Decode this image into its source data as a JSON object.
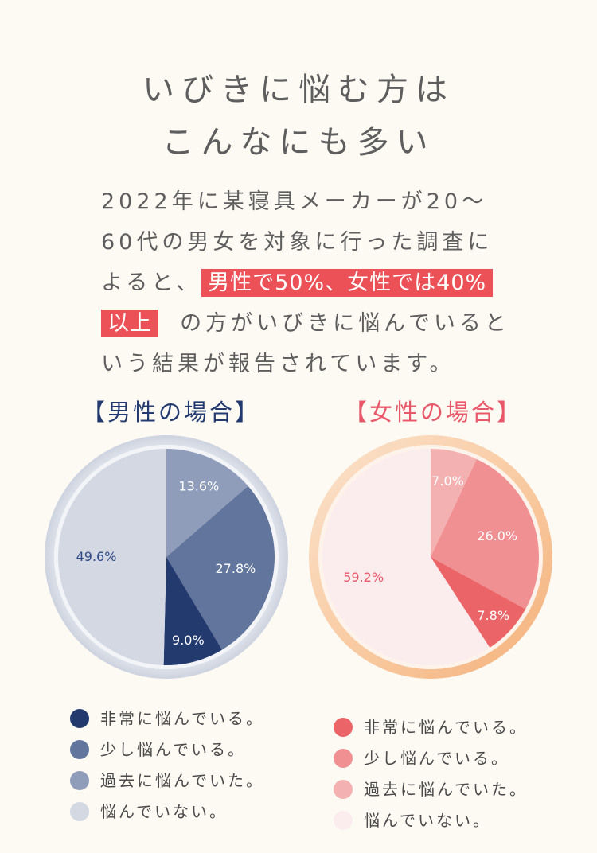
{
  "title_lines": [
    "いびきに悩む方は",
    "こんなにも多い"
  ],
  "body": {
    "line1": "2022年に某寝具メーカーが20〜",
    "line2": "60代の男女を対象に行った調査に",
    "line3_pre": "よると、",
    "line3_hl": "男性で50%、女性では40%",
    "line4_hl": "以上",
    "line4_post": "の方がいびきに悩んでいると",
    "line5": "いう結果が報告されています。"
  },
  "male_heading": "【男性の場合】",
  "female_heading": "【女性の場合】",
  "colors": {
    "male_heading": "#223a70",
    "female_heading": "#e8586a",
    "highlight": "#ec5157"
  },
  "chart_data": [
    {
      "type": "pie",
      "title": "【男性の場合】",
      "categories": [
        "非常に悩んでいる。",
        "少し悩んでいる。",
        "過去に悩んでいた。",
        "悩んでいない。"
      ],
      "values": [
        9.0,
        27.8,
        13.6,
        49.6
      ],
      "value_labels": [
        "9.0%",
        "27.8%",
        "13.6%",
        "49.6%"
      ],
      "colors": [
        "#233a6e",
        "#62759c",
        "#8f9cba",
        "#d3d8e3"
      ],
      "label_colors": [
        "#ffffff",
        "#ffffff",
        "#ffffff",
        "#2f4a86"
      ],
      "legend_placement": "bottom"
    },
    {
      "type": "pie",
      "title": "【女性の場合】",
      "categories": [
        "非常に悩んでいる。",
        "少し悩んでいる。",
        "過去に悩んでいた。",
        "悩んでいない。"
      ],
      "values": [
        7.8,
        26.0,
        7.0,
        59.2
      ],
      "value_labels": [
        "7.8%",
        "26.0%",
        "7.0%",
        "59.2%"
      ],
      "colors": [
        "#ea6468",
        "#f09093",
        "#f4b1b2",
        "#fbecee"
      ],
      "label_colors": [
        "#ffffff",
        "#ffffff",
        "#ffffff",
        "#e8586a"
      ],
      "legend_placement": "bottom"
    }
  ]
}
